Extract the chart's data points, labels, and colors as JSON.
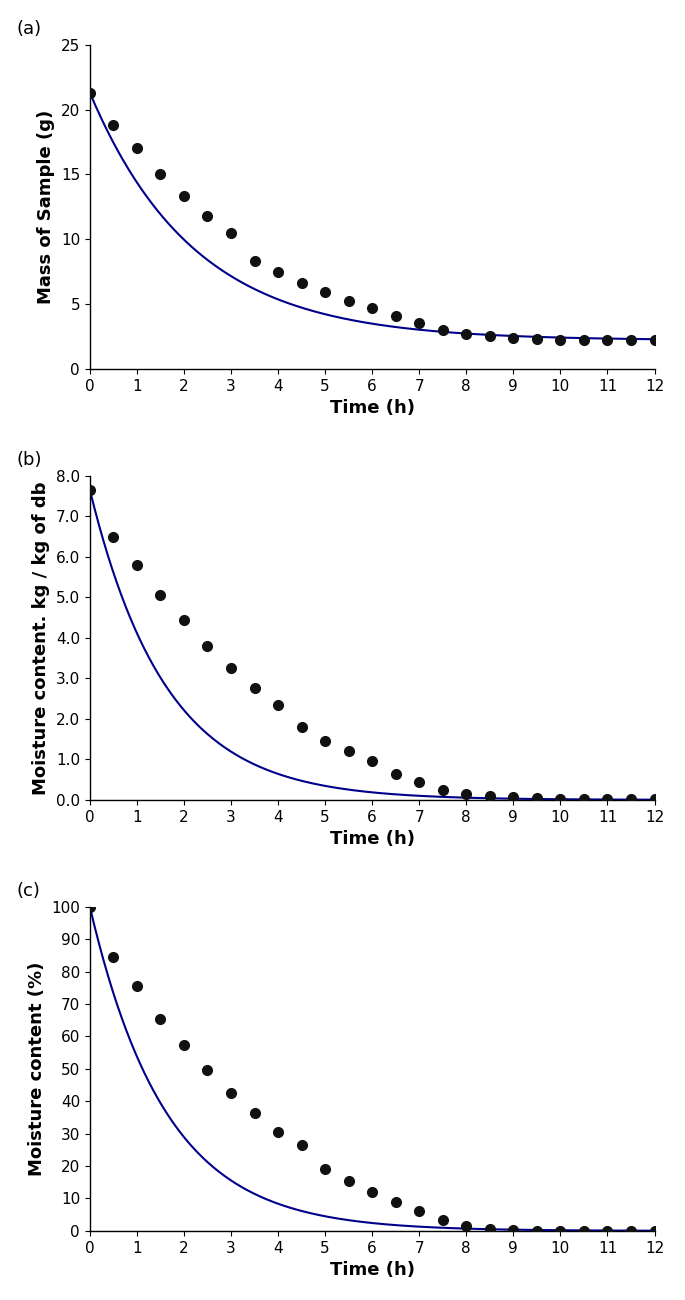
{
  "plot_a": {
    "label": "(a)",
    "xlabel": "Time (h)",
    "ylabel": "Mass of Sample (g)",
    "time": [
      0,
      0.5,
      1.0,
      1.5,
      2.0,
      2.5,
      3.0,
      3.5,
      4.0,
      4.5,
      5.0,
      5.5,
      6.0,
      6.5,
      7.0,
      7.5,
      8.0,
      8.5,
      9.0,
      9.5,
      10.0,
      10.5,
      11.0,
      11.5,
      12.0
    ],
    "values": [
      21.3,
      18.8,
      17.0,
      15.0,
      13.3,
      11.8,
      10.5,
      8.3,
      7.5,
      6.6,
      5.9,
      5.2,
      4.7,
      4.1,
      3.5,
      3.0,
      2.7,
      2.5,
      2.4,
      2.3,
      2.25,
      2.2,
      2.2,
      2.2,
      2.2
    ],
    "ylim": [
      0,
      25
    ],
    "yticks": [
      0,
      5,
      10,
      15,
      20,
      25
    ],
    "xlim": [
      0,
      12
    ],
    "xticks": [
      0,
      1,
      2,
      3,
      4,
      5,
      6,
      7,
      8,
      9,
      10,
      11,
      12
    ]
  },
  "plot_b": {
    "label": "(b)",
    "xlabel": "Time (h)",
    "ylabel": "Moisture content. kg / kg of db",
    "time": [
      0,
      0.5,
      1.0,
      1.5,
      2.0,
      2.5,
      3.0,
      3.5,
      4.0,
      4.5,
      5.0,
      5.5,
      6.0,
      6.5,
      7.0,
      7.5,
      8.0,
      8.5,
      9.0,
      9.5,
      10.0,
      10.5,
      11.0,
      11.5,
      12.0
    ],
    "values": [
      7.65,
      6.5,
      5.8,
      5.05,
      4.45,
      3.8,
      3.25,
      2.75,
      2.35,
      1.8,
      1.45,
      1.2,
      0.95,
      0.65,
      0.45,
      0.25,
      0.15,
      0.09,
      0.06,
      0.04,
      0.03,
      0.02,
      0.01,
      0.01,
      0.01
    ],
    "ylim": [
      0,
      8.0
    ],
    "yticks": [
      0.0,
      1.0,
      2.0,
      3.0,
      4.0,
      5.0,
      6.0,
      7.0,
      8.0
    ],
    "xlim": [
      0,
      12
    ],
    "xticks": [
      0,
      1,
      2,
      3,
      4,
      5,
      6,
      7,
      8,
      9,
      10,
      11,
      12
    ]
  },
  "plot_c": {
    "label": "(c)",
    "xlabel": "Time (h)",
    "ylabel": "Moisture content (%)",
    "time": [
      0,
      0.5,
      1.0,
      1.5,
      2.0,
      2.5,
      3.0,
      3.5,
      4.0,
      4.5,
      5.0,
      5.5,
      6.0,
      6.5,
      7.0,
      7.5,
      8.0,
      8.5,
      9.0,
      9.5,
      10.0,
      10.5,
      11.0,
      11.5,
      12.0
    ],
    "values": [
      100,
      84.5,
      75.5,
      65.5,
      57.5,
      49.5,
      42.5,
      36.5,
      30.5,
      26.5,
      19.0,
      15.5,
      12.0,
      9.0,
      6.0,
      3.5,
      1.5,
      0.5,
      0.2,
      0.1,
      0.05,
      0.03,
      0.02,
      0.01,
      0.01
    ],
    "ylim": [
      0,
      100
    ],
    "yticks": [
      0,
      10,
      20,
      30,
      40,
      50,
      60,
      70,
      80,
      90,
      100
    ],
    "xlim": [
      0,
      12
    ],
    "xticks": [
      0,
      1,
      2,
      3,
      4,
      5,
      6,
      7,
      8,
      9,
      10,
      11,
      12
    ]
  },
  "line_color": "#00008B",
  "marker_color": "#111111",
  "marker_size": 7,
  "line_width": 1.5,
  "background_color": "#ffffff",
  "label_fontsize": 13,
  "tick_fontsize": 11,
  "axis_label_fontsize": 13
}
